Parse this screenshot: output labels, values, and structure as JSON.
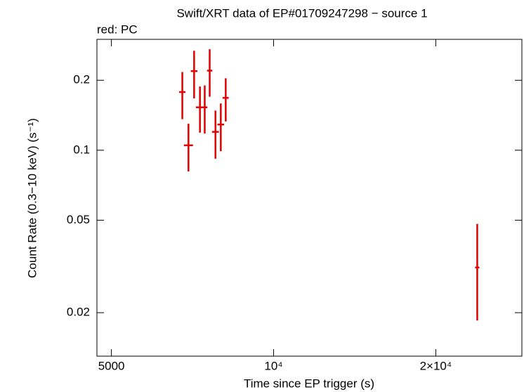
{
  "chart_data": {
    "type": "scatter",
    "title": "Swift/XRT data of EP#01709247298 − source 1",
    "subtitle": "red: PC",
    "x_label": "Time since EP trigger (s)",
    "y_label": "Count Rate (0.3−10 keV) (s⁻¹)",
    "x_log": true,
    "y_log": true,
    "xlim": [
      4700,
      28900
    ],
    "ylim": [
      0.013,
      0.3
    ],
    "xticks": [
      5000,
      {
        "value": 10000,
        "label": "10⁴"
      },
      {
        "value": 20000,
        "label": "2×10⁴"
      }
    ],
    "yticks": [
      0.02,
      0.05,
      0.1,
      0.2
    ],
    "series": [
      {
        "name": "PC",
        "color": "#e00000",
        "x": [
          6770,
          6950,
          7120,
          7300,
          7450,
          7610,
          7800,
          7980,
          8150,
          23880
        ],
        "xerr": [
          92,
          135,
          100,
          125,
          85,
          85,
          115,
          115,
          105,
          215
        ],
        "values": [
          0.178,
          0.105,
          0.219,
          0.153,
          0.153,
          0.22,
          0.12,
          0.129,
          0.168,
          0.0313
        ],
        "yerr_minus": [
          0.042,
          0.024,
          0.052,
          0.034,
          0.035,
          0.05,
          0.028,
          0.03,
          0.035,
          0.0128
        ],
        "yerr_plus": [
          0.039,
          0.025,
          0.049,
          0.035,
          0.037,
          0.052,
          0.028,
          0.03,
          0.036,
          0.0169
        ]
      }
    ]
  }
}
